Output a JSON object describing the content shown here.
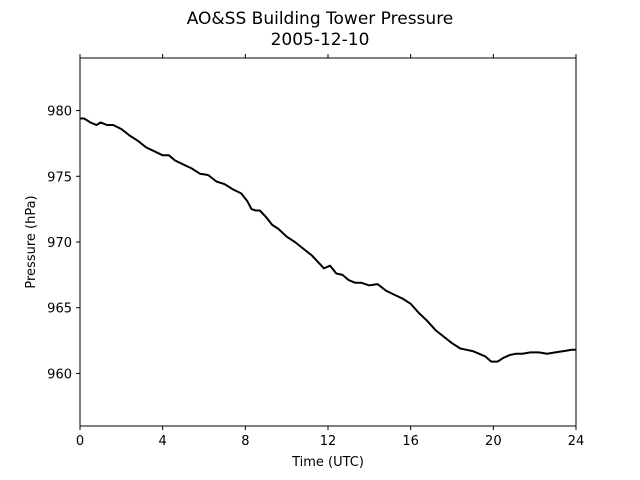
{
  "chart_data": {
    "type": "line",
    "title": "AO&SS Building Tower Pressure",
    "subtitle": "2005-12-10",
    "xlabel": "Time (UTC)",
    "ylabel": "Pressure (hPa)",
    "xlim": [
      0,
      24
    ],
    "ylim": [
      956,
      984
    ],
    "xticks": [
      0,
      4,
      8,
      12,
      16,
      20,
      24
    ],
    "yticks": [
      960,
      965,
      970,
      975,
      980
    ],
    "grid": false,
    "line_color": "#000000",
    "series": [
      {
        "x": [
          0,
          0.2,
          0.5,
          0.8,
          1.0,
          1.3,
          1.6,
          2.0,
          2.4,
          2.8,
          3.2,
          3.6,
          4.0,
          4.3,
          4.6,
          5.0,
          5.4,
          5.8,
          6.2,
          6.6,
          7.0,
          7.4,
          7.8,
          8.1,
          8.3,
          8.5,
          8.7,
          9.0,
          9.3,
          9.6,
          10.0,
          10.4,
          10.8,
          11.2,
          11.5,
          11.8,
          12.1,
          12.4,
          12.7,
          13.0,
          13.3,
          13.6,
          14.0,
          14.4,
          14.8,
          15.2,
          15.6,
          16.0,
          16.4,
          16.8,
          17.2,
          17.6,
          18.0,
          18.4,
          18.7,
          19.0,
          19.3,
          19.6,
          19.9,
          20.2,
          20.5,
          20.8,
          21.1,
          21.4,
          21.8,
          22.2,
          22.6,
          23.0,
          23.4,
          23.8,
          24.0
        ],
        "y": [
          979.4,
          979.4,
          979.1,
          978.9,
          979.1,
          978.9,
          978.9,
          978.6,
          978.1,
          977.7,
          977.2,
          976.9,
          976.6,
          976.6,
          976.2,
          975.9,
          975.6,
          975.2,
          975.1,
          974.6,
          974.4,
          974.0,
          973.7,
          973.1,
          972.5,
          972.4,
          972.4,
          971.9,
          971.3,
          971.0,
          970.4,
          970.0,
          969.5,
          969.0,
          968.5,
          968.0,
          968.2,
          967.6,
          967.5,
          967.1,
          966.9,
          966.9,
          966.7,
          966.8,
          966.3,
          966.0,
          965.7,
          965.3,
          964.6,
          964.0,
          963.3,
          962.8,
          962.3,
          961.9,
          961.8,
          961.7,
          961.5,
          961.3,
          960.9,
          960.9,
          961.2,
          961.4,
          961.5,
          961.5,
          961.6,
          961.6,
          961.5,
          961.6,
          961.7,
          961.8,
          961.8
        ]
      }
    ]
  }
}
